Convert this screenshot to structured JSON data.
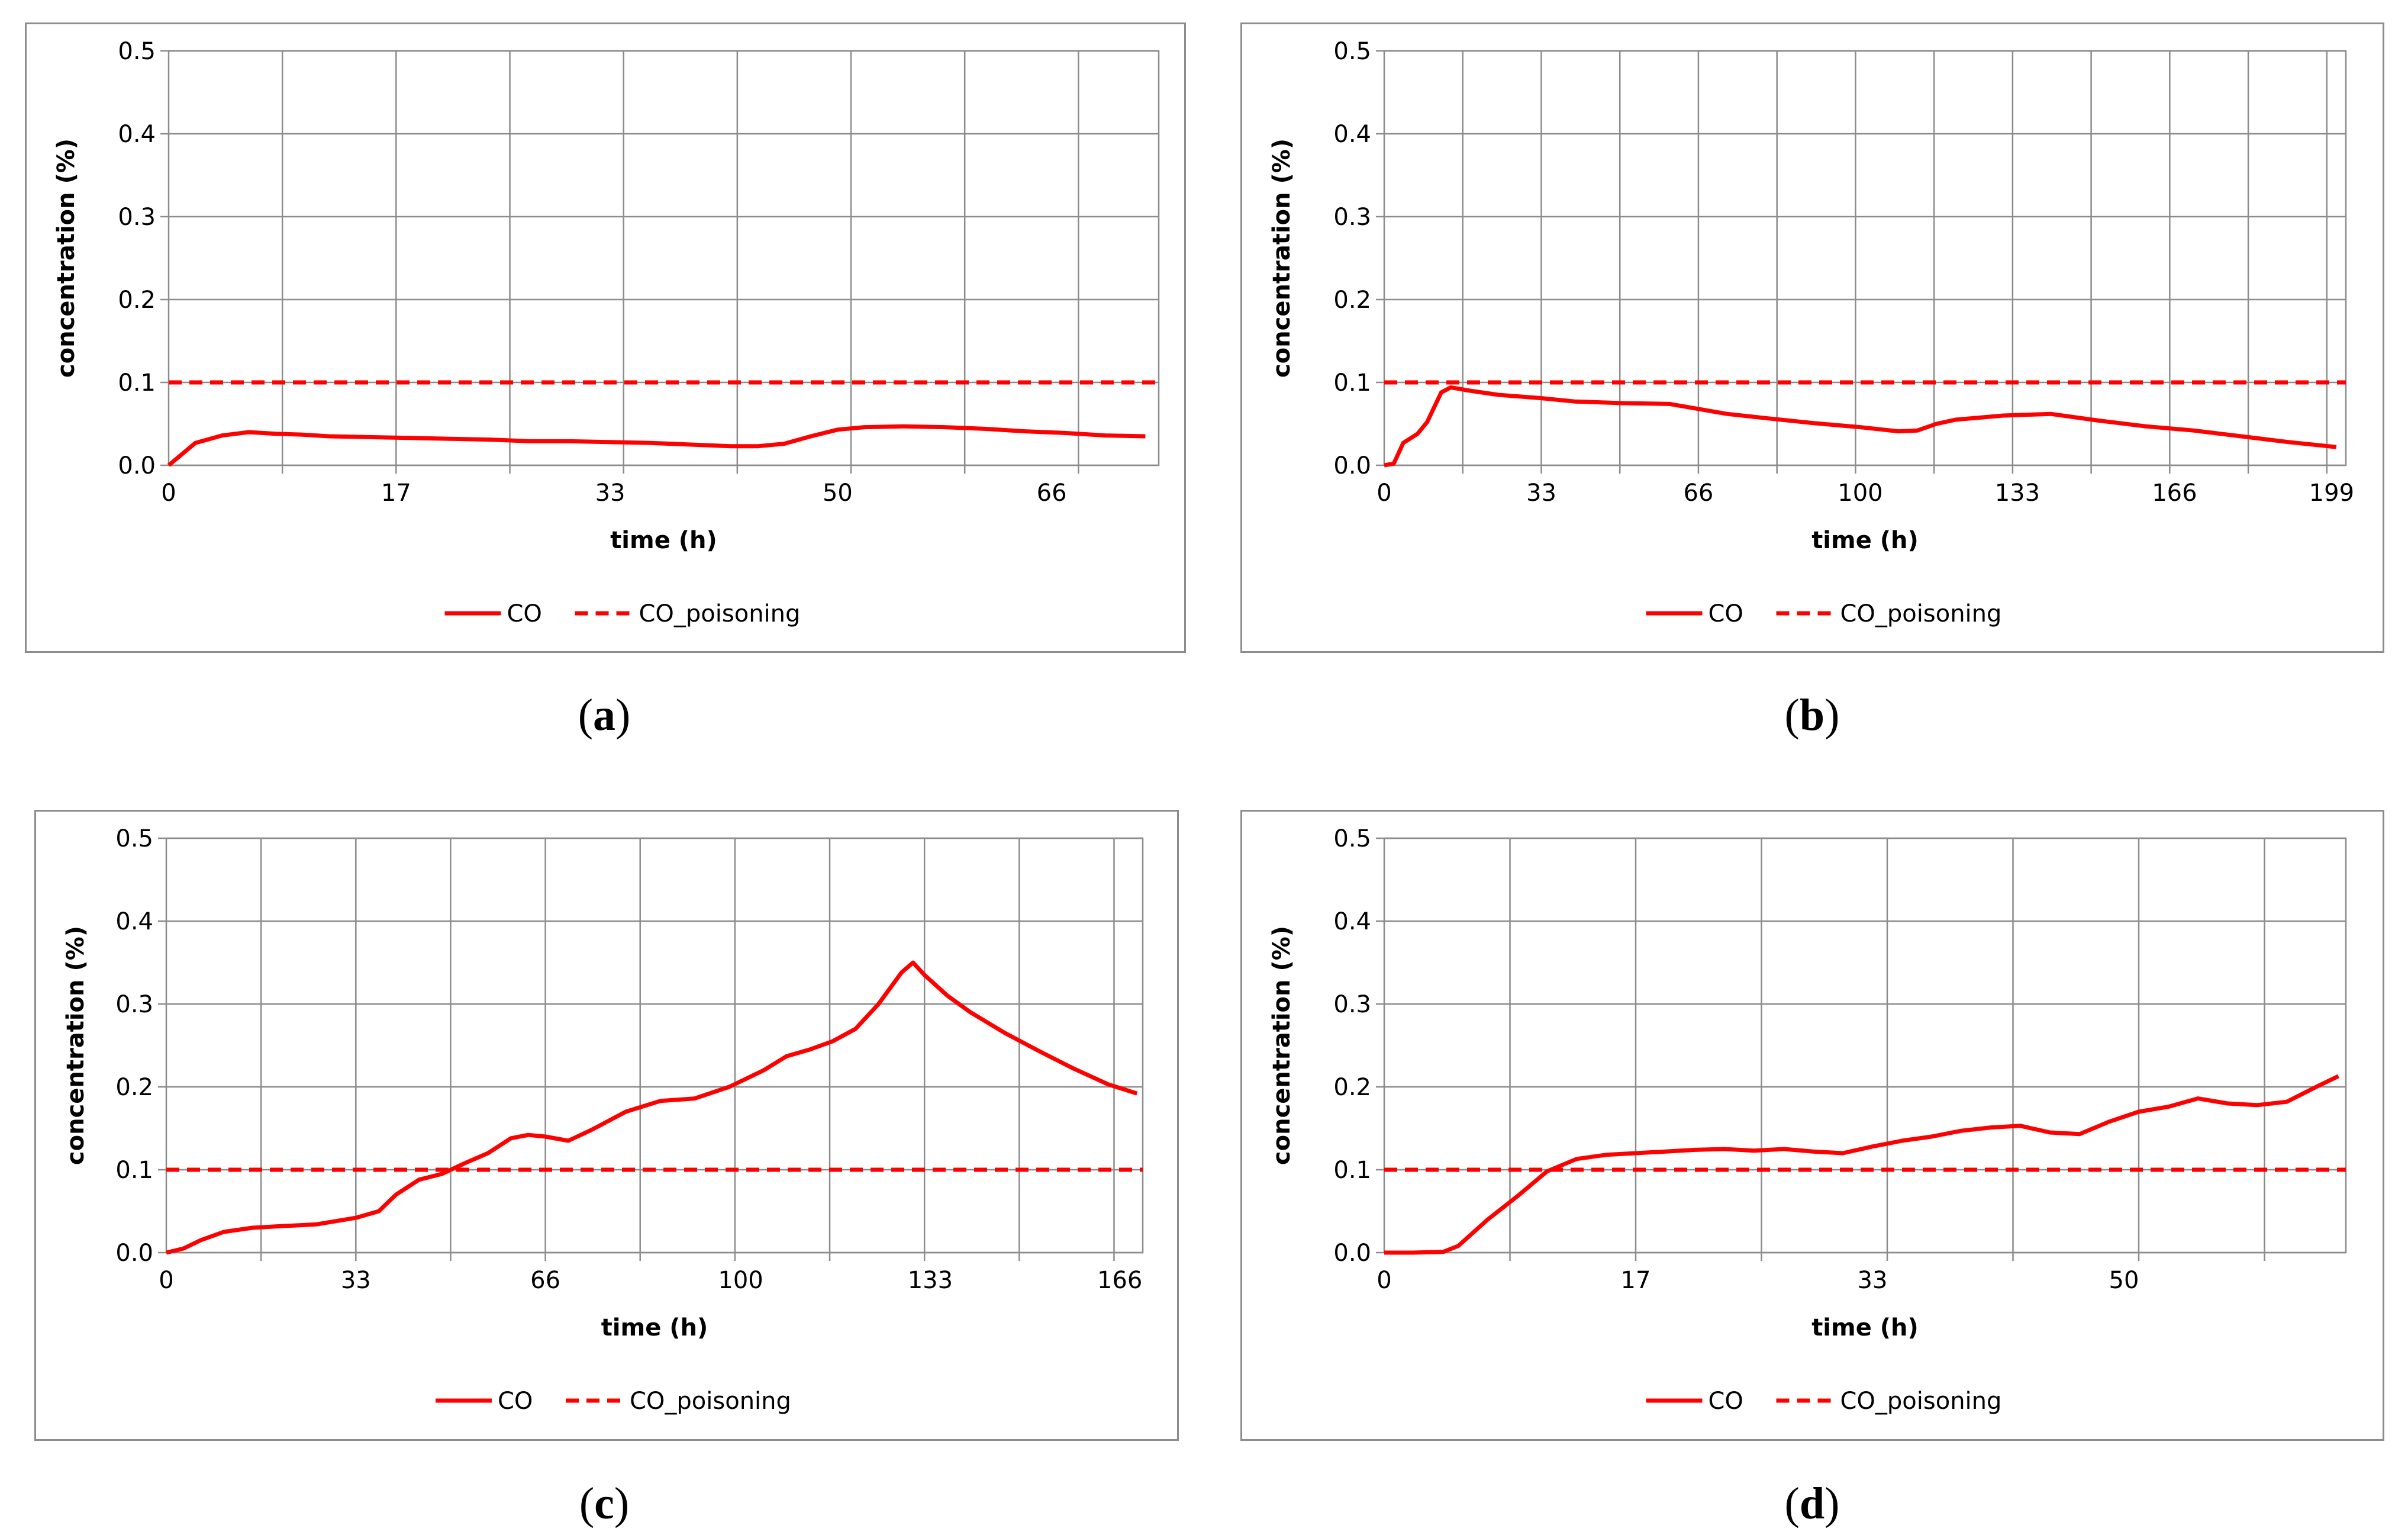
{
  "colors": {
    "co": "#ff0000",
    "grid": "#8c8c8c",
    "border": "#8c8c8c"
  },
  "chart_data": [
    {
      "type": "line",
      "panel": "a",
      "caption": "a",
      "xlabel": "time (h)",
      "ylabel": "concentration (%)",
      "xlim": [
        0,
        74
      ],
      "ylim": [
        0,
        0.5
      ],
      "xticks": [
        0,
        17,
        33,
        50,
        66
      ],
      "yticks": [
        "0.0",
        "0.1",
        "0.2",
        "0.3",
        "0.4",
        "0.5"
      ],
      "legend": [
        "CO",
        "CO_poisoning"
      ],
      "series": [
        {
          "name": "CO",
          "style": "solid",
          "x": [
            0,
            2,
            4,
            6,
            8,
            10,
            12,
            15,
            18,
            21,
            24,
            27,
            30,
            33,
            36,
            39,
            42,
            44,
            46,
            48,
            50,
            52,
            55,
            58,
            61,
            64,
            67,
            70,
            73
          ],
          "values": [
            0.0,
            0.027,
            0.036,
            0.04,
            0.038,
            0.037,
            0.035,
            0.034,
            0.033,
            0.032,
            0.031,
            0.029,
            0.029,
            0.028,
            0.027,
            0.025,
            0.023,
            0.023,
            0.026,
            0.035,
            0.043,
            0.046,
            0.047,
            0.046,
            0.044,
            0.041,
            0.039,
            0.036,
            0.035
          ]
        },
        {
          "name": "CO_poisoning",
          "style": "dashed",
          "x": [
            0,
            74
          ],
          "values": [
            0.1,
            0.1
          ]
        }
      ]
    },
    {
      "type": "line",
      "panel": "b",
      "caption": "b",
      "xlabel": "time (h)",
      "ylabel": "concentration (%)",
      "xlim": [
        0,
        202
      ],
      "ylim": [
        0,
        0.5
      ],
      "xticks": [
        0,
        33,
        66,
        100,
        133,
        166,
        199
      ],
      "yticks": [
        "0.0",
        "0.1",
        "0.2",
        "0.3",
        "0.4",
        "0.5"
      ],
      "legend": [
        "CO",
        "CO_poisoning"
      ],
      "series": [
        {
          "name": "CO",
          "style": "solid",
          "x": [
            0,
            2,
            4,
            7,
            9,
            12,
            14,
            18,
            24,
            33,
            40,
            50,
            60,
            66,
            72,
            80,
            90,
            100,
            108,
            112,
            116,
            120,
            130,
            140,
            150,
            160,
            170,
            180,
            190,
            200
          ],
          "values": [
            0.0,
            0.002,
            0.027,
            0.038,
            0.052,
            0.088,
            0.094,
            0.09,
            0.085,
            0.081,
            0.077,
            0.075,
            0.074,
            0.068,
            0.062,
            0.057,
            0.051,
            0.046,
            0.041,
            0.042,
            0.05,
            0.055,
            0.06,
            0.062,
            0.054,
            0.047,
            0.042,
            0.035,
            0.028,
            0.022
          ]
        },
        {
          "name": "CO_poisoning",
          "style": "dashed",
          "x": [
            0,
            202
          ],
          "values": [
            0.1,
            0.1
          ]
        }
      ]
    },
    {
      "type": "line",
      "panel": "c",
      "caption": "c",
      "xlabel": "time (h)",
      "ylabel": "concentration (%)",
      "xlim": [
        0,
        170
      ],
      "ylim": [
        0,
        0.5
      ],
      "xticks": [
        0,
        33,
        66,
        100,
        133,
        166
      ],
      "yticks": [
        "0.0",
        "0.1",
        "0.2",
        "0.3",
        "0.4",
        "0.5"
      ],
      "legend": [
        "CO",
        "CO_poisoning"
      ],
      "series": [
        {
          "name": "CO",
          "style": "solid",
          "x": [
            0,
            3,
            6,
            10,
            15,
            20,
            26,
            33,
            37,
            40,
            44,
            48,
            52,
            56,
            60,
            63,
            66,
            70,
            74,
            80,
            86,
            92,
            98,
            104,
            108,
            112,
            116,
            120,
            124,
            128,
            130,
            132,
            136,
            140,
            146,
            152,
            158,
            164,
            169
          ],
          "values": [
            0.0,
            0.005,
            0.015,
            0.025,
            0.03,
            0.032,
            0.034,
            0.042,
            0.05,
            0.07,
            0.088,
            0.095,
            0.108,
            0.12,
            0.138,
            0.142,
            0.14,
            0.135,
            0.148,
            0.17,
            0.183,
            0.186,
            0.2,
            0.22,
            0.237,
            0.245,
            0.255,
            0.27,
            0.3,
            0.338,
            0.35,
            0.335,
            0.31,
            0.29,
            0.265,
            0.243,
            0.222,
            0.203,
            0.192
          ]
        },
        {
          "name": "CO_poisoning",
          "style": "dashed",
          "x": [
            0,
            170
          ],
          "values": [
            0.1,
            0.1
          ]
        }
      ]
    },
    {
      "type": "line",
      "panel": "d",
      "caption": "d",
      "xlabel": "time (h)",
      "ylabel": "concentration (%)",
      "xlim": [
        0,
        65
      ],
      "ylim": [
        0,
        0.5
      ],
      "xticks": [
        0,
        17,
        33,
        50
      ],
      "yticks": [
        "0.0",
        "0.1",
        "0.2",
        "0.3",
        "0.4",
        "0.5"
      ],
      "legend": [
        "CO",
        "CO_poisoning"
      ],
      "series": [
        {
          "name": "CO",
          "style": "solid",
          "x": [
            0,
            2,
            4,
            5,
            7,
            9,
            11,
            13,
            15,
            17,
            19,
            21,
            23,
            25,
            27,
            29,
            31,
            33,
            35,
            37,
            39,
            41,
            43,
            45,
            47,
            49,
            51,
            53,
            55,
            57,
            59,
            61,
            63,
            64.5
          ],
          "values": [
            0.0,
            0.0,
            0.001,
            0.008,
            0.04,
            0.068,
            0.098,
            0.113,
            0.118,
            0.12,
            0.122,
            0.124,
            0.125,
            0.123,
            0.125,
            0.122,
            0.12,
            0.128,
            0.135,
            0.14,
            0.147,
            0.151,
            0.153,
            0.145,
            0.143,
            0.158,
            0.17,
            0.176,
            0.186,
            0.18,
            0.178,
            0.182,
            0.2,
            0.213
          ]
        },
        {
          "name": "CO_poisoning",
          "style": "dashed",
          "x": [
            0,
            65
          ],
          "values": [
            0.1,
            0.1
          ]
        }
      ]
    }
  ]
}
